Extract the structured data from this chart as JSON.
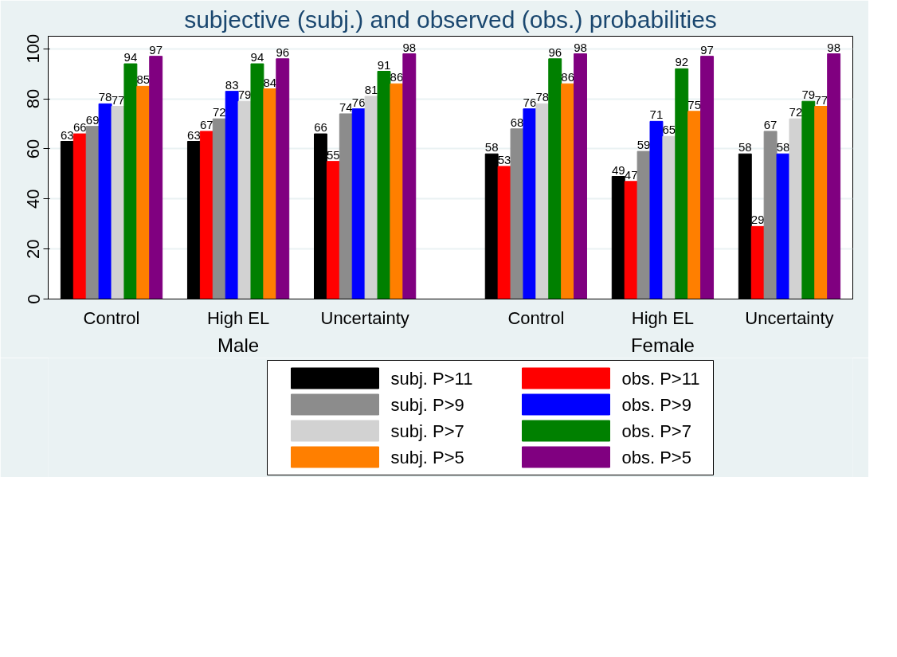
{
  "chart_data": {
    "type": "bar",
    "title": "subjective (subj.) and observed (obs.) probabilities",
    "categories": [
      "Control",
      "High EL",
      "Uncertainty",
      "Control",
      "High EL",
      "Uncertainty"
    ],
    "annotations": [
      "Male",
      "Female"
    ],
    "series": [
      {
        "name": "subj. P>11",
        "color": "#000000",
        "values": [
          63,
          63,
          66,
          58,
          49,
          58
        ]
      },
      {
        "name": "obs. P>11",
        "color": "#ff0000",
        "values": [
          66,
          67,
          55,
          53,
          47,
          29
        ]
      },
      {
        "name": "subj. P>9",
        "color": "#8c8c8c",
        "values": [
          69,
          72,
          74,
          68,
          59,
          67
        ]
      },
      {
        "name": "obs. P>9",
        "color": "#0000ff",
        "values": [
          78,
          83,
          76,
          76,
          71,
          58
        ]
      },
      {
        "name": "subj. P>7",
        "color": "#d2d2d2",
        "values": [
          77,
          79,
          81,
          78,
          65,
          72
        ]
      },
      {
        "name": "obs. P>7",
        "color": "#008000",
        "values": [
          94,
          94,
          91,
          96,
          92,
          79
        ]
      },
      {
        "name": "subj. P>5",
        "color": "#ff7f00",
        "values": [
          85,
          84,
          86,
          86,
          75,
          77
        ]
      },
      {
        "name": "obs. P>5",
        "color": "#800080",
        "values": [
          97,
          96,
          98,
          98,
          97,
          98
        ]
      }
    ],
    "ylim": [
      0,
      105
    ],
    "yticks": [
      0,
      20,
      40,
      60,
      80,
      100
    ],
    "grid": "y",
    "legend": "bottom",
    "data_labels": true
  }
}
